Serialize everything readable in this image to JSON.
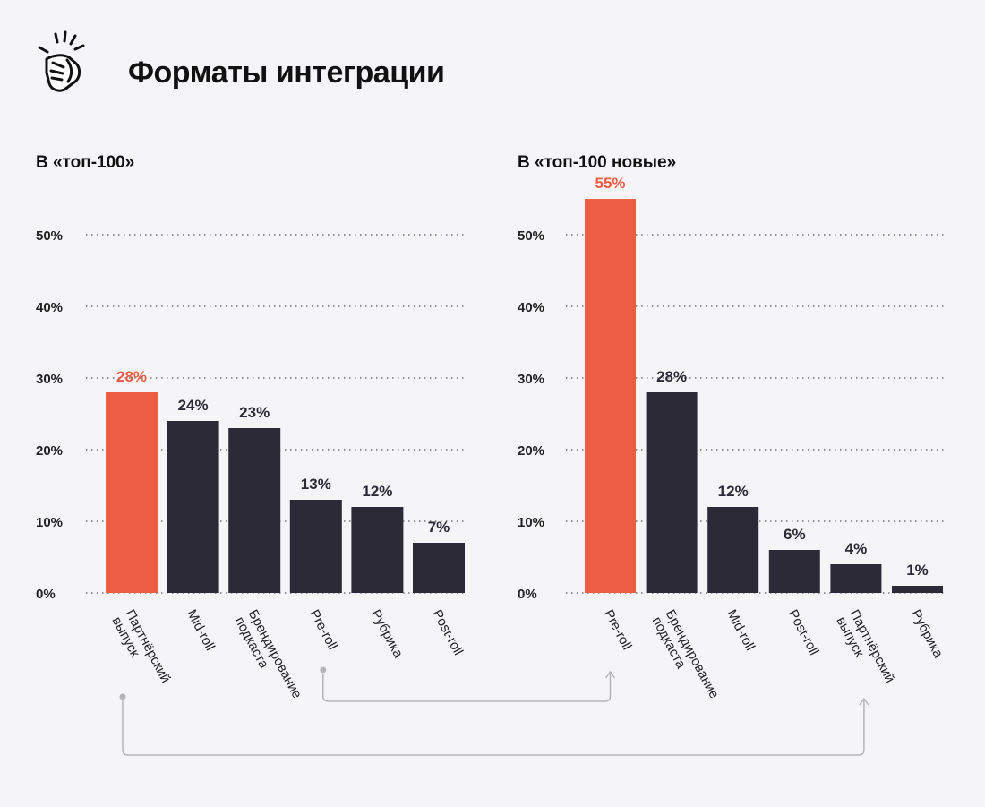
{
  "title": "Форматы интеграции",
  "colors": {
    "highlight": "#ec5d45",
    "bar": "#2c2a37",
    "connector": "#b5b5b5",
    "background": "#f5f5f7"
  },
  "chart_data": [
    {
      "type": "bar",
      "title": "В «топ-100»",
      "categories": [
        "Партнёрский выпуск",
        "Mid-roll",
        "Брендирование подкаста",
        "Pre-roll",
        "Рубрика",
        "Post-roll"
      ],
      "category_lines": [
        [
          "Партнёрский",
          "выпуск"
        ],
        [
          "Mid-roll"
        ],
        [
          "Брендирование",
          "подкаста"
        ],
        [
          "Pre-roll"
        ],
        [
          "Рубрика"
        ],
        [
          "Post-roll"
        ]
      ],
      "values": [
        28,
        24,
        23,
        13,
        12,
        7
      ],
      "value_labels": [
        "28%",
        "24%",
        "23%",
        "13%",
        "12%",
        "7%"
      ],
      "highlight_index": 0,
      "ylim": [
        0,
        50
      ],
      "yticks": [
        0,
        10,
        20,
        30,
        40,
        50
      ],
      "ytick_labels": [
        "0%",
        "10%",
        "20%",
        "30%",
        "40%",
        "50%"
      ],
      "grid": true
    },
    {
      "type": "bar",
      "title": "В «топ-100 новые»",
      "categories": [
        "Pre-roll",
        "Брендирование подкаста",
        "Mid-roll",
        "Post-roll",
        "Партнёрский выпуск",
        "Рубрика"
      ],
      "category_lines": [
        [
          "Pre-roll"
        ],
        [
          "Брендирование",
          "подкаста"
        ],
        [
          "Mid-roll"
        ],
        [
          "Post-roll"
        ],
        [
          "Партнёрский",
          "выпуск"
        ],
        [
          "Рубрика"
        ]
      ],
      "values": [
        55,
        28,
        12,
        6,
        4,
        1
      ],
      "value_labels": [
        "55%",
        "28%",
        "12%",
        "6%",
        "4%",
        "1%"
      ],
      "highlight_index": 0,
      "ylim": [
        0,
        50
      ],
      "yticks": [
        0,
        10,
        20,
        30,
        40,
        50
      ],
      "ytick_labels": [
        "0%",
        "10%",
        "20%",
        "30%",
        "40%",
        "50%"
      ],
      "grid": true
    }
  ],
  "connectors": [
    {
      "from_chart": 0,
      "from_category": "Pre-roll",
      "to_chart": 1,
      "to_category": "Pre-roll"
    },
    {
      "from_chart": 0,
      "from_category": "Партнёрский выпуск",
      "to_chart": 1,
      "to_category": "Партнёрский выпуск"
    }
  ]
}
